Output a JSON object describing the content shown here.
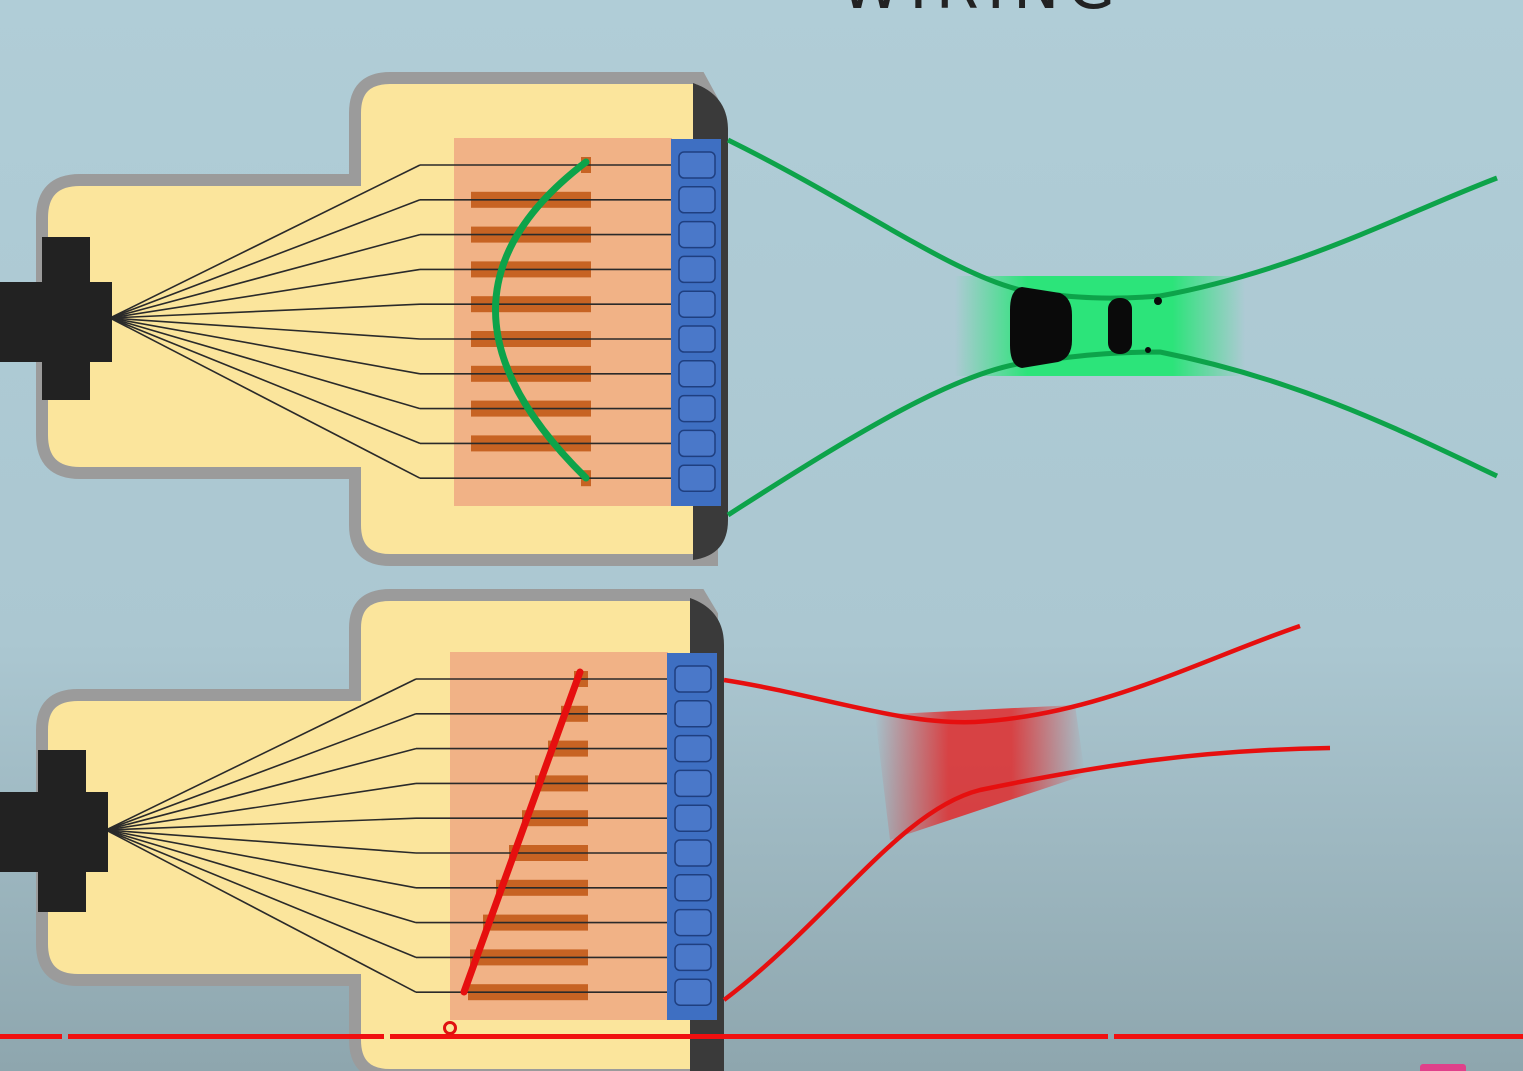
{
  "title": "WIRING",
  "colors": {
    "background": "#adc9d3",
    "housing_body": "#fbe59c",
    "housing_outline": "#9a9a9a",
    "terminal_block": "#f0b083",
    "terminal_bar": "#c76323",
    "contact_blue": "#3e6fc2",
    "end_cap": "#3a3a3a",
    "cable_boot": "#222222",
    "straight_through": "#0da34a",
    "crossover": "#e60f0f",
    "progress_bar": "#f01010"
  },
  "connectors": [
    {
      "id": "top",
      "wire_color": "green",
      "wire_count": 10,
      "crossing": "straight"
    },
    {
      "id": "bottom",
      "wire_color": "red",
      "wire_count": 10,
      "crossing": "diagonal"
    }
  ],
  "video_progress": {
    "segments": 5,
    "icons": [
      "settings-marker-icon"
    ]
  }
}
